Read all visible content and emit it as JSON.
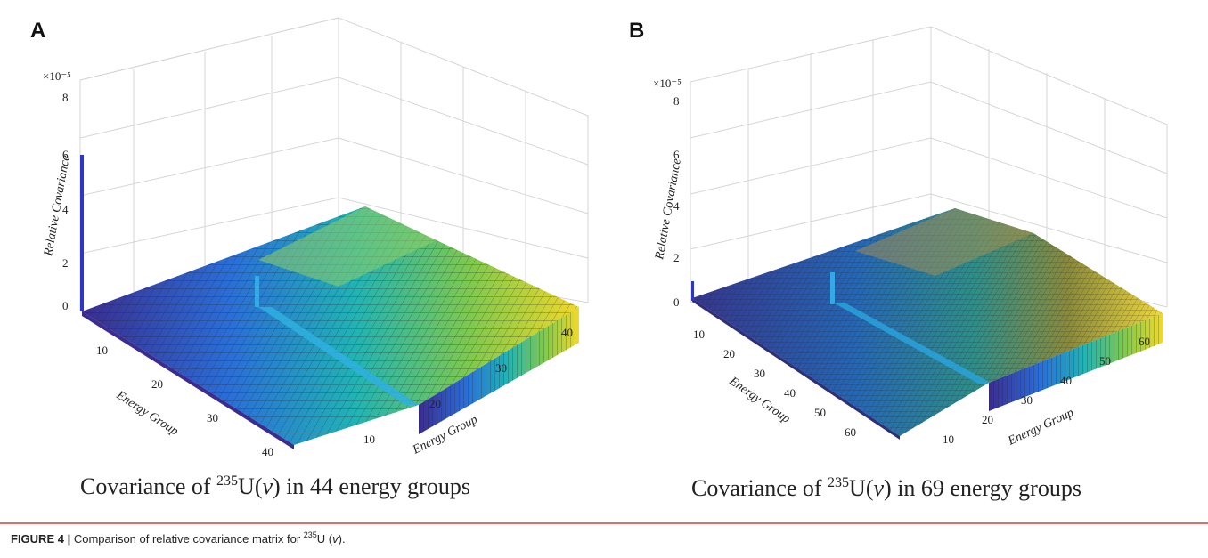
{
  "figure": {
    "caption_label": "FIGURE 4 |",
    "caption_pre": "Comparison of relative covariance matrix for ",
    "caption_sup": "235",
    "caption_post_a": "U (",
    "caption_nu": "v",
    "caption_post_b": ")."
  },
  "panels": [
    {
      "letter": "A",
      "subtitle_pre": "Covariance of ",
      "subtitle_sup": "235",
      "subtitle_post_a": "U(",
      "subtitle_nu": "v",
      "subtitle_post_b": ") in 44 energy groups"
    },
    {
      "letter": "B",
      "subtitle_pre": "Covariance of ",
      "subtitle_sup": "235",
      "subtitle_post_a": "U(",
      "subtitle_nu": "v",
      "subtitle_post_b": ")  in 69 energy groups"
    }
  ],
  "chart_data": [
    {
      "type": "bar3d",
      "groups": 44,
      "z_multiplier": "×10⁻⁵",
      "zlabel": "Relative Covariance",
      "xlabel": "Energy Group",
      "ylabel": "Energy Group",
      "z_ticks": [
        0,
        2,
        4,
        6,
        8
      ],
      "x_ticks": [
        10,
        20,
        30,
        40
      ],
      "y_ticks": [
        10,
        20,
        30,
        40
      ],
      "zlim": [
        0,
        8
      ],
      "surface_plateau_max": 1.1,
      "diagonal_spike_value": 1.0,
      "first_group_peak": 6.3,
      "colormap": [
        "#3b2c8f",
        "#2a6fd8",
        "#21b3b5",
        "#7ec94e",
        "#f2e52a"
      ]
    },
    {
      "type": "bar3d",
      "groups": 69,
      "z_multiplier": "×10⁻⁵",
      "zlabel": "Relative Covariance",
      "xlabel": "Energy Group",
      "ylabel": "Energy Group",
      "z_ticks": [
        0,
        2,
        4,
        6,
        8
      ],
      "x_ticks": [
        10,
        20,
        30,
        40,
        50,
        60
      ],
      "y_ticks": [
        10,
        20,
        30,
        40,
        50,
        60
      ],
      "zlim": [
        0,
        8
      ],
      "surface_plateau_max": 1.1,
      "diagonal_spike_value": 0.8,
      "first_group_peak": 0.9,
      "colormap": [
        "#3b2c8f",
        "#2a6fd8",
        "#21b3b5",
        "#7ec94e",
        "#f2e52a"
      ]
    }
  ]
}
